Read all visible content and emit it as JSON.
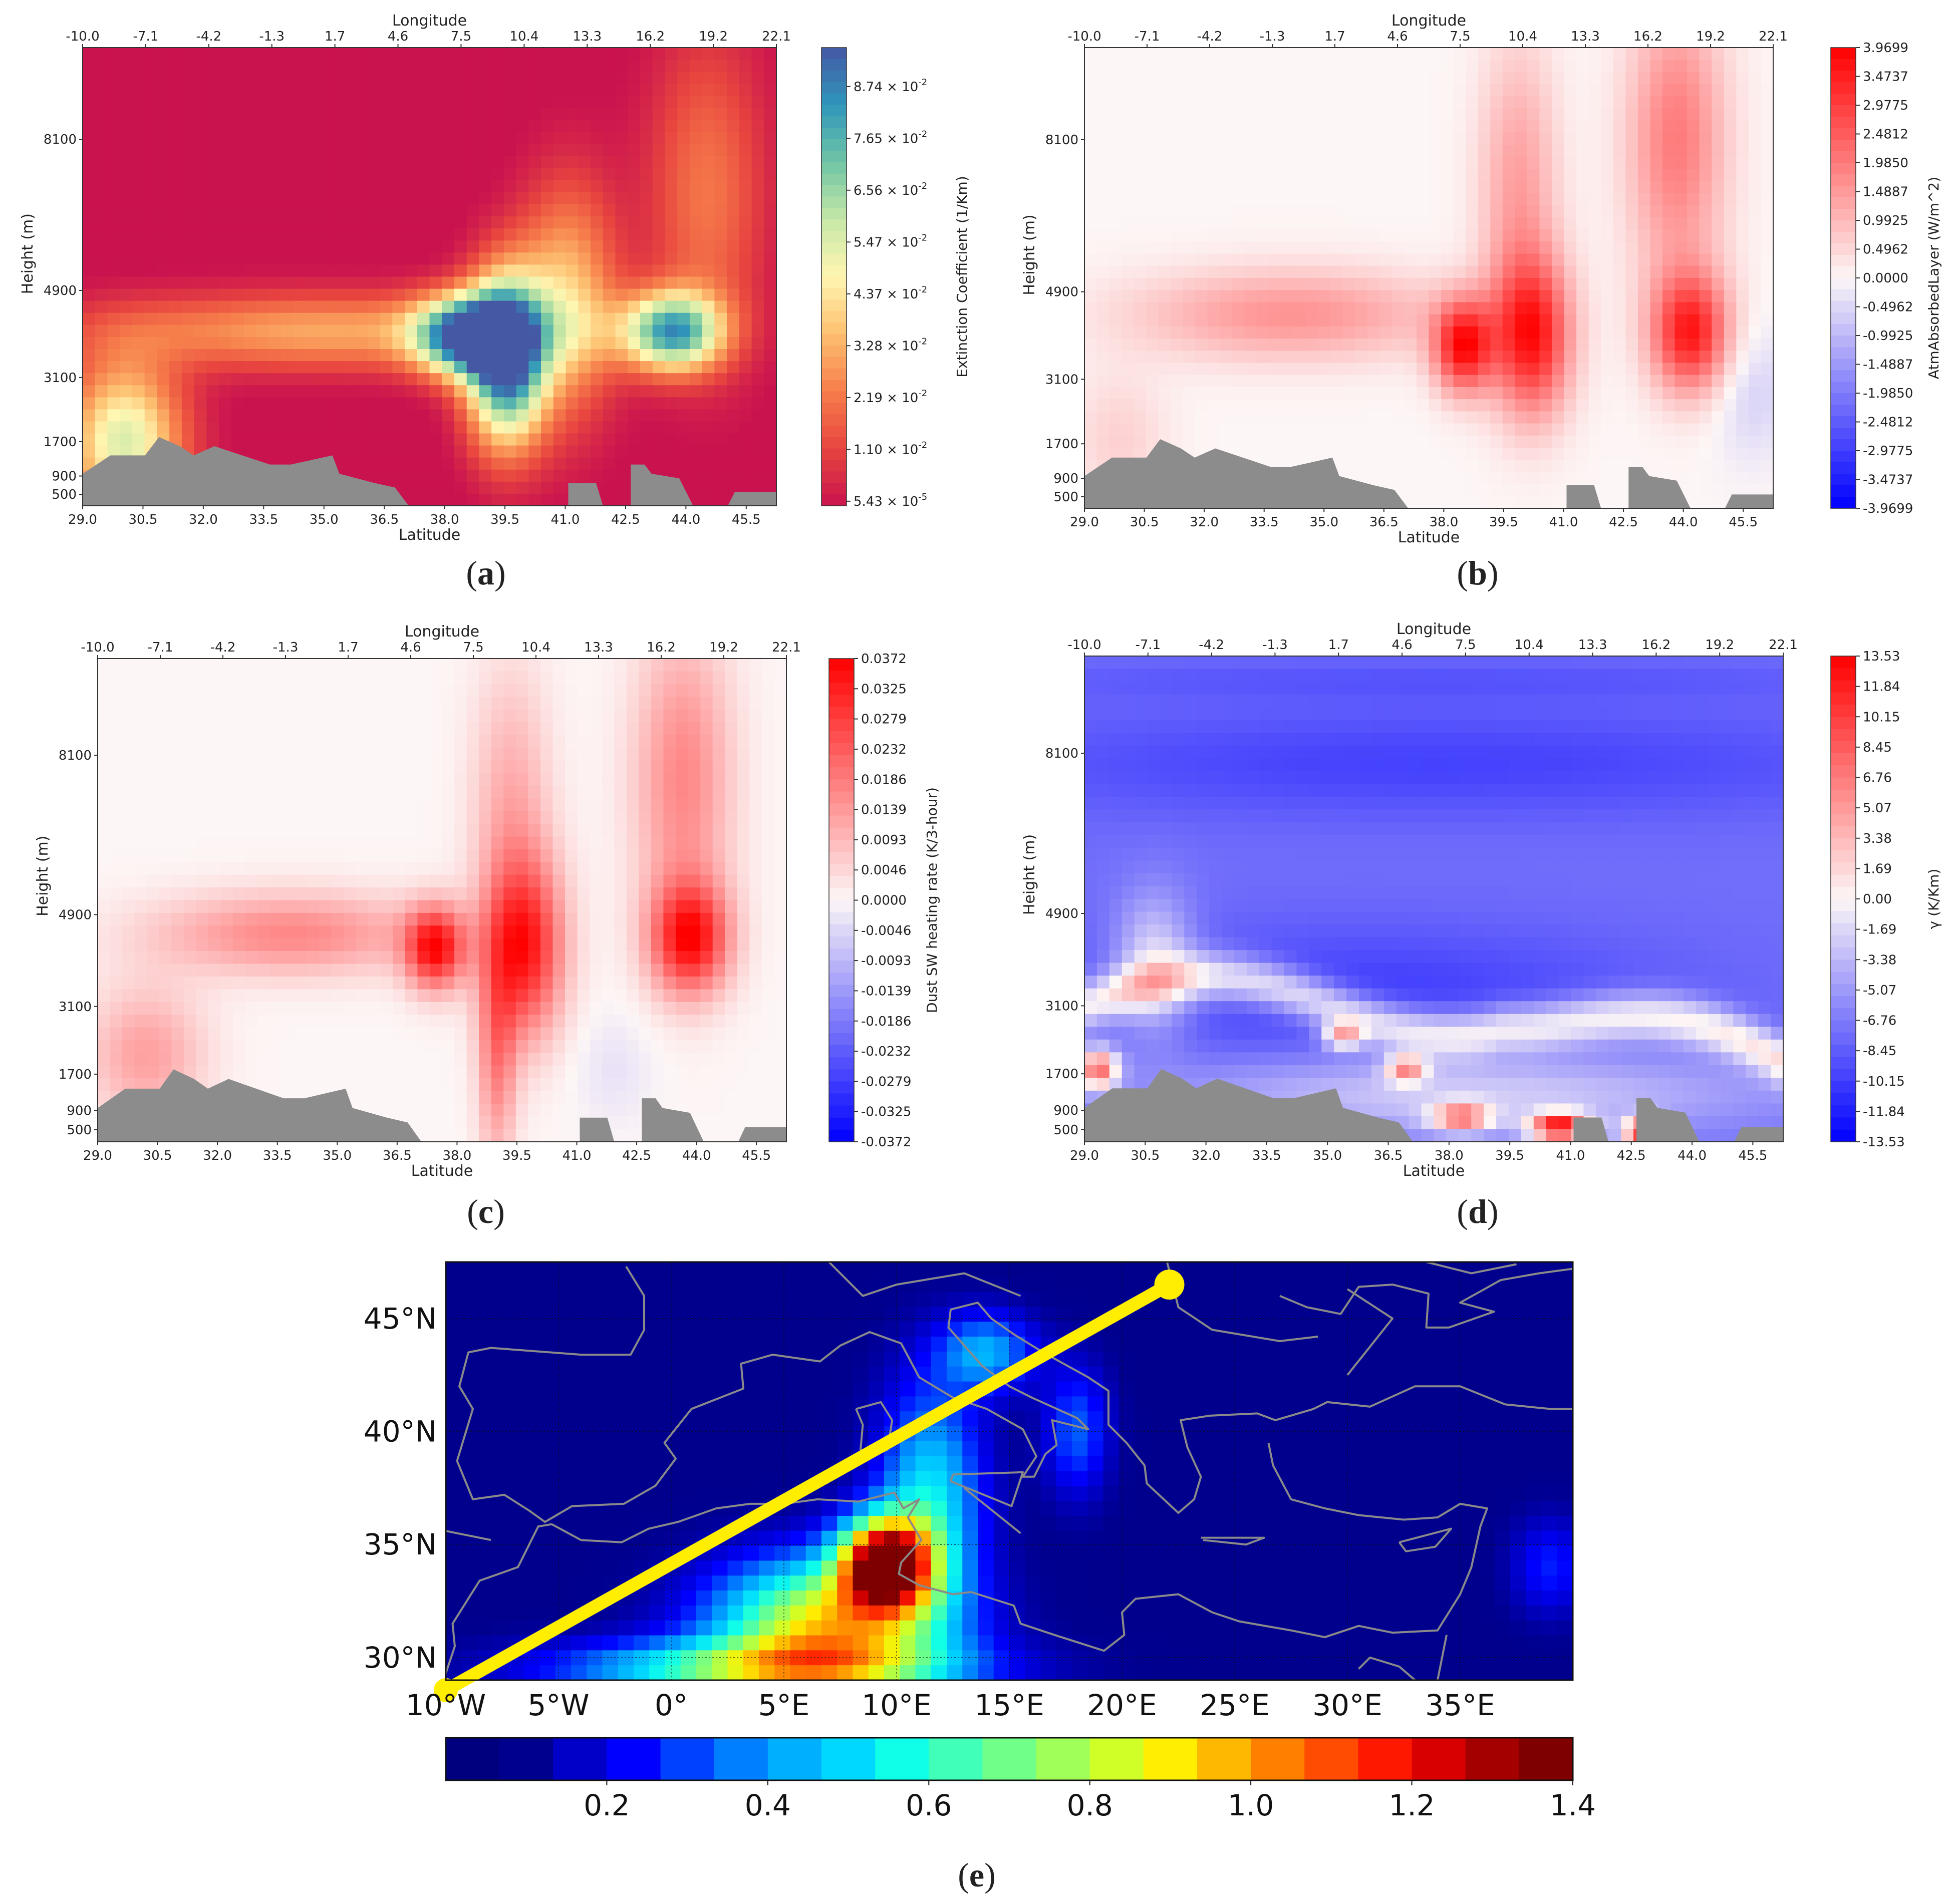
{
  "figure": {
    "panel_labels": [
      {
        "open": "(",
        "letter": "a",
        "close": ")"
      },
      {
        "open": "(",
        "letter": "b",
        "close": ")"
      },
      {
        "open": "(",
        "letter": "c",
        "close": ")"
      },
      {
        "open": "(",
        "letter": "d",
        "close": ")"
      },
      {
        "open": "(",
        "letter": "e",
        "close": ")"
      }
    ]
  },
  "chart_data": [
    {
      "id": "a",
      "type": "heatmap",
      "xlabel": "Latitude",
      "top_axis_label": "Longitude",
      "ylabel": "Height (m)",
      "lat_ticks": [
        "29.0",
        "30.5",
        "32.0",
        "33.5",
        "35.0",
        "36.5",
        "38.0",
        "39.5",
        "41.0",
        "42.5",
        "44.0",
        "45.5"
      ],
      "lon_ticks": [
        "-10.0",
        "-7.1",
        "-4.2",
        "-1.3",
        "1.7",
        "4.6",
        "7.5",
        "10.4",
        "13.3",
        "16.2",
        "19.2",
        "22.1"
      ],
      "height_ticks": [
        "8100",
        "4900",
        "3100",
        "1700",
        "900",
        "500"
      ],
      "colorbar_label": "Extinction Coefficient (1/Km)",
      "colorbar_ticks": [
        {
          "mantissa": "8.74",
          "exp": "-2"
        },
        {
          "mantissa": "7.65",
          "exp": "-2"
        },
        {
          "mantissa": "6.56",
          "exp": "-2"
        },
        {
          "mantissa": "5.47",
          "exp": "-2"
        },
        {
          "mantissa": "4.37",
          "exp": "-2"
        },
        {
          "mantissa": "3.28",
          "exp": "-2"
        },
        {
          "mantissa": "2.19",
          "exp": "-2"
        },
        {
          "mantissa": "1.10",
          "exp": "-2"
        },
        {
          "mantissa": "5.43",
          "exp": "-5"
        }
      ],
      "colors": [
        "#c9134f",
        "#e8453f",
        "#f67e4b",
        "#fdbf6f",
        "#fff7b2",
        "#c6e7a6",
        "#6fc5a5",
        "#2f96bb",
        "#4558a4"
      ]
    },
    {
      "id": "b",
      "type": "heatmap",
      "xlabel": "Latitude",
      "top_axis_label": "Longitude",
      "ylabel": "Height (m)",
      "lat_ticks": [
        "29.0",
        "30.5",
        "32.0",
        "33.5",
        "35.0",
        "36.5",
        "38.0",
        "39.5",
        "41.0",
        "42.5",
        "44.0",
        "45.5"
      ],
      "lon_ticks": [
        "-10.0",
        "-7.1",
        "-4.2",
        "-1.3",
        "1.7",
        "4.6",
        "7.5",
        "10.4",
        "13.3",
        "16.2",
        "19.2",
        "22.1"
      ],
      "height_ticks": [
        "8100",
        "4900",
        "3100",
        "1700",
        "900",
        "500"
      ],
      "colorbar_label": "AtmAbsorbedLayer (W/m^2)",
      "colorbar_ticks": [
        "3.9699",
        "3.4737",
        "2.9775",
        "2.4812",
        "1.9850",
        "1.4887",
        "0.9925",
        "0.4962",
        "0.0000",
        "-0.4962",
        "-0.9925",
        "-1.4887",
        "-1.9850",
        "-2.4812",
        "-2.9775",
        "-3.4737",
        "-3.9699"
      ],
      "colors": [
        "#ff0000",
        "#fdf6f6",
        "#0000ff"
      ]
    },
    {
      "id": "c",
      "type": "heatmap",
      "xlabel": "Latitude",
      "top_axis_label": "Longitude",
      "ylabel": "Height (m)",
      "lat_ticks": [
        "29.0",
        "30.5",
        "32.0",
        "33.5",
        "35.0",
        "36.5",
        "38.0",
        "39.5",
        "41.0",
        "42.5",
        "44.0",
        "45.5"
      ],
      "lon_ticks": [
        "-10.0",
        "-7.1",
        "-4.2",
        "-1.3",
        "1.7",
        "4.6",
        "7.5",
        "10.4",
        "13.3",
        "16.2",
        "19.2",
        "22.1"
      ],
      "height_ticks": [
        "8100",
        "4900",
        "3100",
        "1700",
        "900",
        "500"
      ],
      "colorbar_label": "Dust SW heating rate (K/3-hour)",
      "colorbar_ticks": [
        "0.0372",
        "0.0325",
        "0.0279",
        "0.0232",
        "0.0186",
        "0.0139",
        "0.0093",
        "0.0046",
        "0.0000",
        "-0.0046",
        "-0.0093",
        "-0.0139",
        "-0.0186",
        "-0.0232",
        "-0.0279",
        "-0.0325",
        "-0.0372"
      ],
      "colors": [
        "#ff0000",
        "#fdf6f6",
        "#0000ff"
      ]
    },
    {
      "id": "d",
      "type": "heatmap",
      "xlabel": "Latitude",
      "top_axis_label": "Longitude",
      "ylabel": "Height (m)",
      "lat_ticks": [
        "29.0",
        "30.5",
        "32.0",
        "33.5",
        "35.0",
        "36.5",
        "38.0",
        "39.5",
        "41.0",
        "42.5",
        "44.0",
        "45.5"
      ],
      "lon_ticks": [
        "-10.0",
        "-7.1",
        "-4.2",
        "-1.3",
        "1.7",
        "4.6",
        "7.5",
        "10.4",
        "13.3",
        "16.2",
        "19.2",
        "22.1"
      ],
      "height_ticks": [
        "8100",
        "4900",
        "3100",
        "1700",
        "900",
        "500"
      ],
      "colorbar_label": "γ (K/Km)",
      "colorbar_ticks": [
        "13.53",
        "11.84",
        "10.15",
        "8.45",
        "6.76",
        "5.07",
        "3.38",
        "1.69",
        "0.00",
        "-1.69",
        "-3.38",
        "-5.07",
        "-6.76",
        "-8.45",
        "-10.15",
        "-11.84",
        "-13.53"
      ],
      "colors": [
        "#ff0000",
        "#fdf6f6",
        "#0000ff"
      ]
    },
    {
      "id": "e",
      "type": "heatmap",
      "subtype": "map",
      "lon_labels": [
        "10°W",
        "5°W",
        "0°",
        "5°E",
        "10°E",
        "15°E",
        "20°E",
        "25°E",
        "30°E",
        "35°E"
      ],
      "lat_labels": [
        "45°N",
        "40°N",
        "35°N",
        "30°N"
      ],
      "transect": {
        "start": {
          "lon": -10.0,
          "lat": 29.0
        },
        "end": {
          "lon": 22.1,
          "lat": 46.5
        }
      },
      "colorbar_ticks": [
        "0.2",
        "0.4",
        "0.6",
        "0.8",
        "1.0",
        "1.2",
        "1.4"
      ],
      "colorbar_range": [
        0.0,
        1.4
      ],
      "colors": [
        "#00007f",
        "#00008f",
        "#0000c8",
        "#0000ff",
        "#0040ff",
        "#0080ff",
        "#00b0ff",
        "#00d8ff",
        "#10ffe8",
        "#40ffb8",
        "#70ff88",
        "#a0ff58",
        "#d0ff28",
        "#ffee00",
        "#ffb800",
        "#ff8000",
        "#ff4c00",
        "#ff1800",
        "#d80000",
        "#a40000",
        "#7f0000"
      ]
    }
  ]
}
